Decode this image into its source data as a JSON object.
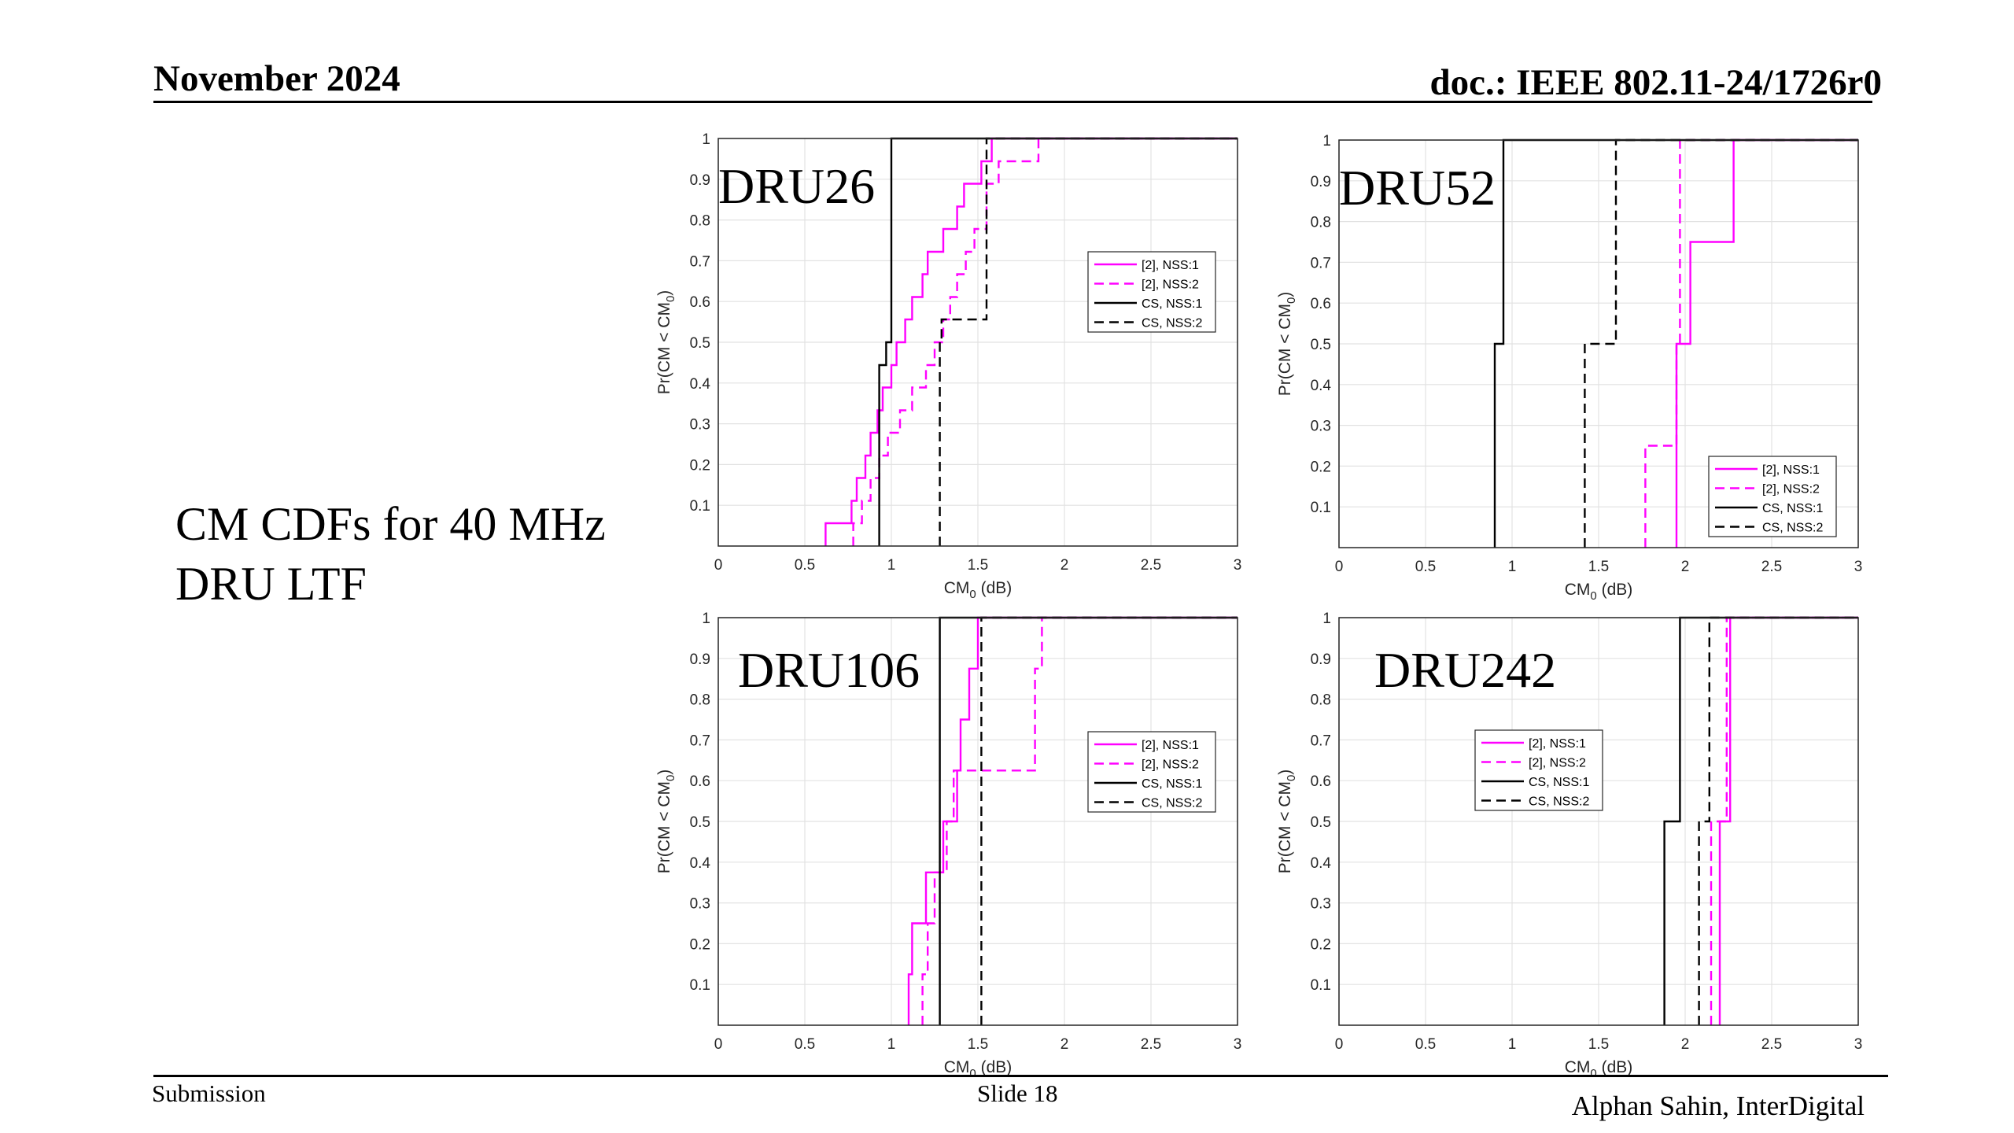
{
  "header": {
    "date": "November 2024",
    "doc_id": "doc.: IEEE 802.11-24/1726r0"
  },
  "slide": {
    "caption": "CM CDFs for 40 MHz DRU LTF"
  },
  "footer": {
    "left": "Submission",
    "center": "Slide 18",
    "right": "Alphan Sahin, InterDigital"
  },
  "series_style": {
    "[2], NSS:1": {
      "color": "#ff00ff",
      "dash": "solid"
    },
    "[2], NSS:2": {
      "color": "#ff00ff",
      "dash": "dashed"
    },
    "CS, NSS:1": {
      "color": "#000000",
      "dash": "solid"
    },
    "CS, NSS:2": {
      "color": "#000000",
      "dash": "dashed"
    }
  },
  "chart_data": [
    {
      "type": "line",
      "title": "DRU26",
      "xlabel": "CM0 (dB)",
      "ylabel": "Pr(CM < CM0)",
      "xlim": [
        0,
        3
      ],
      "ylim": [
        0,
        1
      ],
      "xticks": [
        "0",
        "0.5",
        "1",
        "1.5",
        "2",
        "2.5",
        "3"
      ],
      "yticks": [
        "0.1",
        "0.2",
        "0.3",
        "0.4",
        "0.5",
        "0.6",
        "0.7",
        "0.8",
        "0.9",
        "1"
      ],
      "grid": true,
      "legend_position": "middle-right",
      "series": [
        {
          "name": "[2], NSS:1",
          "x": [
            0.62,
            0.77,
            0.8,
            0.85,
            0.88,
            0.92,
            0.95,
            1.0,
            1.03,
            1.08,
            1.12,
            1.18,
            1.21,
            1.3,
            1.38,
            1.42,
            1.45,
            1.52,
            1.58,
            3.0
          ],
          "y": [
            0.056,
            0.111,
            0.167,
            0.222,
            0.278,
            0.333,
            0.389,
            0.444,
            0.5,
            0.556,
            0.611,
            0.667,
            0.722,
            0.778,
            0.833,
            0.889,
            0.889,
            0.944,
            1.0,
            1.0
          ]
        },
        {
          "name": "[2], NSS:2",
          "x": [
            0.78,
            0.83,
            0.88,
            0.93,
            0.98,
            1.05,
            1.12,
            1.2,
            1.25,
            1.3,
            1.34,
            1.38,
            1.43,
            1.48,
            1.55,
            1.62,
            1.85,
            3.0
          ],
          "y": [
            0.056,
            0.111,
            0.167,
            0.222,
            0.278,
            0.333,
            0.389,
            0.444,
            0.5,
            0.556,
            0.611,
            0.667,
            0.722,
            0.778,
            0.889,
            0.944,
            1.0,
            1.0
          ]
        },
        {
          "name": "CS, NSS:1",
          "x": [
            0.93,
            0.97,
            1.0,
            3.0
          ],
          "y": [
            0.444,
            0.5,
            1.0,
            1.0
          ]
        },
        {
          "name": "CS, NSS:2",
          "x": [
            1.28,
            1.29,
            1.53,
            1.55,
            3.0
          ],
          "y": [
            0.5,
            0.556,
            0.556,
            1.0,
            1.0
          ]
        }
      ]
    },
    {
      "type": "line",
      "title": "DRU52",
      "xlabel": "CM0 (dB)",
      "ylabel": "Pr(CM < CM0)",
      "xlim": [
        0,
        3
      ],
      "ylim": [
        0,
        1
      ],
      "xticks": [
        "0",
        "0.5",
        "1",
        "1.5",
        "2",
        "2.5",
        "3"
      ],
      "yticks": [
        "0.1",
        "0.2",
        "0.3",
        "0.4",
        "0.5",
        "0.6",
        "0.7",
        "0.8",
        "0.9",
        "1"
      ],
      "grid": true,
      "legend_position": "bottom-right",
      "series": [
        {
          "name": "[2], NSS:1",
          "x": [
            1.95,
            1.98,
            2.03,
            2.28,
            3.0
          ],
          "y": [
            0.5,
            0.5,
            0.75,
            1.0,
            1.0
          ]
        },
        {
          "name": "[2], NSS:2",
          "x": [
            1.77,
            1.9,
            1.95,
            1.97,
            3.0
          ],
          "y": [
            0.25,
            0.25,
            0.5,
            1.0,
            1.0
          ]
        },
        {
          "name": "CS, NSS:1",
          "x": [
            0.9,
            0.92,
            0.95,
            0.97,
            3.0
          ],
          "y": [
            0.5,
            0.5,
            1.0,
            1.0,
            1.0
          ]
        },
        {
          "name": "CS, NSS:2",
          "x": [
            1.42,
            1.45,
            1.57,
            1.6,
            3.0
          ],
          "y": [
            0.5,
            0.5,
            0.5,
            1.0,
            1.0
          ]
        }
      ]
    },
    {
      "type": "line",
      "title": "DRU106",
      "xlabel": "CM0 (dB)",
      "ylabel": "Pr(CM < CM0)",
      "xlim": [
        0,
        3
      ],
      "ylim": [
        0,
        1
      ],
      "xticks": [
        "0",
        "0.5",
        "1",
        "1.5",
        "2",
        "2.5",
        "3"
      ],
      "yticks": [
        "0.1",
        "0.2",
        "0.3",
        "0.4",
        "0.5",
        "0.6",
        "0.7",
        "0.8",
        "0.9",
        "1"
      ],
      "grid": true,
      "legend_position": "middle-right",
      "series": [
        {
          "name": "[2], NSS:1",
          "x": [
            1.1,
            1.12,
            1.2,
            1.3,
            1.33,
            1.38,
            1.4,
            1.45,
            1.5,
            3.0
          ],
          "y": [
            0.125,
            0.25,
            0.375,
            0.5,
            0.5,
            0.625,
            0.75,
            0.875,
            1.0,
            1.0
          ]
        },
        {
          "name": "[2], NSS:2",
          "x": [
            1.18,
            1.21,
            1.25,
            1.32,
            1.36,
            1.4,
            1.43,
            1.8,
            1.83,
            1.87,
            3.0
          ],
          "y": [
            0.125,
            0.25,
            0.375,
            0.5,
            0.625,
            0.625,
            0.625,
            0.625,
            0.875,
            1.0,
            1.0
          ]
        },
        {
          "name": "CS, NSS:1",
          "x": [
            1.28,
            3.0
          ],
          "y": [
            1.0,
            1.0
          ]
        },
        {
          "name": "CS, NSS:2",
          "x": [
            1.52,
            3.0
          ],
          "y": [
            1.0,
            1.0
          ]
        }
      ]
    },
    {
      "type": "line",
      "title": "DRU242",
      "xlabel": "CM0 (dB)",
      "ylabel": "Pr(CM < CM0)",
      "xlim": [
        0,
        3
      ],
      "ylim": [
        0,
        1
      ],
      "xticks": [
        "0",
        "0.5",
        "1",
        "1.5",
        "2",
        "2.5",
        "3"
      ],
      "yticks": [
        "0.1",
        "0.2",
        "0.3",
        "0.4",
        "0.5",
        "0.6",
        "0.7",
        "0.8",
        "0.9",
        "1"
      ],
      "grid": true,
      "legend_position": "middle-left",
      "series": [
        {
          "name": "[2], NSS:1",
          "x": [
            2.2,
            2.26,
            3.0
          ],
          "y": [
            0.5,
            1.0,
            1.0
          ]
        },
        {
          "name": "[2], NSS:2",
          "x": [
            2.15,
            2.24,
            3.0
          ],
          "y": [
            0.5,
            1.0,
            1.0
          ]
        },
        {
          "name": "CS, NSS:1",
          "x": [
            1.88,
            1.97,
            3.0
          ],
          "y": [
            0.5,
            1.0,
            1.0
          ]
        },
        {
          "name": "CS, NSS:2",
          "x": [
            2.08,
            2.14,
            3.0
          ],
          "y": [
            0.5,
            1.0,
            1.0
          ]
        }
      ]
    }
  ]
}
